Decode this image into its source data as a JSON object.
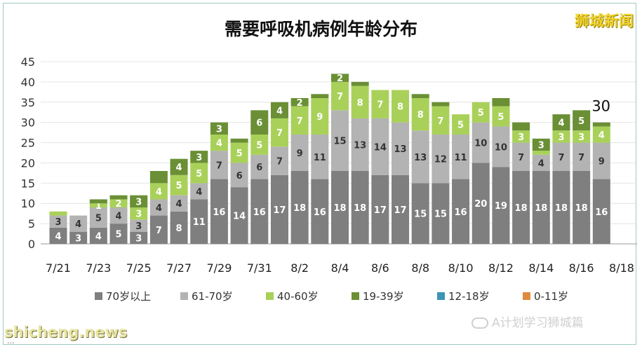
{
  "title": "需要呼吸机病例年龄分布",
  "brand": "狮城新闻",
  "watermark": {
    "left": "shicheng.news",
    "right": "A计划学习狮城篇",
    "icon": "wechat-icon",
    "note": "..."
  },
  "chart_data": {
    "type": "bar",
    "stacked": true,
    "title": "需要呼吸机病例年龄分布",
    "xlabel": "",
    "ylabel": "",
    "ylim": [
      0,
      45
    ],
    "yticks": [
      0,
      5,
      10,
      15,
      20,
      25,
      30,
      35,
      40,
      45
    ],
    "grid": true,
    "legend_position": "bottom",
    "xtick_labels": [
      "7/21",
      "7/23",
      "7/25",
      "7/27",
      "7/29",
      "7/31",
      "8/2",
      "8/4",
      "8/6",
      "8/8",
      "8/10",
      "8/12",
      "8/14",
      "8/16",
      "8/18"
    ],
    "categories": [
      "7/21",
      "7/22",
      "7/23",
      "7/24",
      "7/25",
      "7/26",
      "7/27",
      "7/28",
      "7/29",
      "7/30",
      "7/31",
      "8/1",
      "8/2",
      "8/3",
      "8/4",
      "8/5",
      "8/6",
      "8/7",
      "8/8",
      "8/9",
      "8/10",
      "8/11",
      "8/12",
      "8/13",
      "8/14",
      "8/15",
      "8/16",
      "8/17",
      "8/18"
    ],
    "series": [
      {
        "name": "70岁以上",
        "color": "#7f7f7f",
        "values": [
          4,
          3,
          4,
          5,
          3,
          7,
          8,
          11,
          16,
          14,
          16,
          17,
          18,
          16,
          18,
          18,
          17,
          17,
          15,
          15,
          16,
          20,
          19,
          18,
          18,
          18,
          18,
          16,
          0
        ]
      },
      {
        "name": "61-70岁",
        "color": "#b3b3b3",
        "values": [
          3,
          4,
          5,
          4,
          3,
          4,
          4,
          4,
          7,
          6,
          6,
          7,
          9,
          11,
          15,
          13,
          14,
          13,
          13,
          12,
          11,
          10,
          10,
          7,
          4,
          7,
          7,
          9,
          0
        ]
      },
      {
        "name": "40-60岁",
        "color": "#a9d15a",
        "values": [
          1,
          0,
          1,
          2,
          3,
          4,
          5,
          5,
          4,
          5,
          5,
          7,
          7,
          9,
          7,
          8,
          7,
          8,
          8,
          7,
          5,
          5,
          5,
          3,
          1,
          3,
          3,
          4,
          0
        ]
      },
      {
        "name": "19-39岁",
        "color": "#6a8f35",
        "values": [
          0,
          0,
          1,
          1,
          3,
          3,
          4,
          3,
          3,
          1,
          6,
          4,
          2,
          1,
          2,
          1,
          0,
          0,
          1,
          1,
          0,
          0,
          2,
          2,
          3,
          4,
          5,
          1,
          0
        ]
      },
      {
        "name": "12-18岁",
        "color": "#3b95b5",
        "values": [
          0,
          0,
          0,
          0,
          0,
          0,
          0,
          0,
          0,
          0,
          0,
          0,
          0,
          0,
          0,
          0,
          0,
          0,
          0,
          0,
          0,
          0,
          0,
          0,
          0,
          0,
          0,
          0,
          0
        ]
      },
      {
        "name": "0-11岁",
        "color": "#e08a3c",
        "values": [
          0,
          0,
          0,
          0,
          0,
          0,
          0,
          0,
          0,
          0,
          0,
          0,
          0,
          0,
          0,
          0,
          0,
          0,
          0,
          0,
          0,
          0,
          0,
          0,
          0,
          0,
          0,
          0,
          0
        ]
      }
    ],
    "hidden_labels": [
      [
        0,
        2
      ],
      [
        1,
        2
      ],
      [
        2,
        3
      ],
      [
        3,
        3
      ],
      [
        5,
        3
      ],
      [
        9,
        3
      ],
      [
        13,
        3
      ],
      [
        15,
        3
      ],
      [
        18,
        3
      ],
      [
        19,
        3
      ],
      [
        22,
        3
      ],
      [
        23,
        3
      ],
      [
        24,
        2
      ],
      [
        27,
        3
      ]
    ],
    "annotations": [
      {
        "category": "8/17",
        "text": "30"
      }
    ]
  }
}
